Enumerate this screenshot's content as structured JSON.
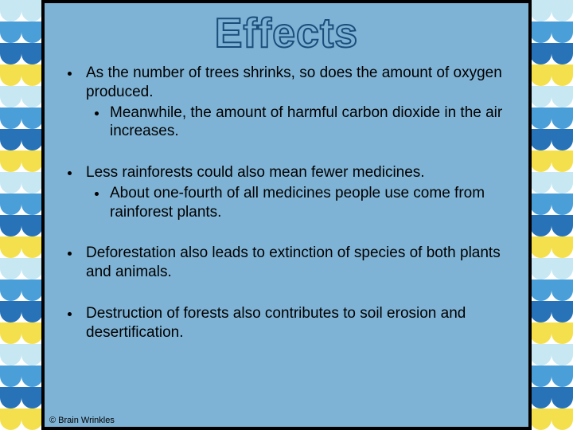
{
  "title": "Effects",
  "bullets": [
    {
      "text": "As the number of trees shrinks, so does the amount of oxygen produced.",
      "sub": [
        "Meanwhile, the amount of harmful carbon dioxide in the air increases."
      ]
    },
    {
      "text": "Less rainforests could also mean fewer medicines.",
      "sub": [
        "About one-fourth of all medicines people use come from rainforest plants."
      ]
    },
    {
      "text": "Deforestation also leads to extinction of species of both plants and animals.",
      "sub": []
    },
    {
      "text": "Destruction of forests also contributes to soil erosion and desertification.",
      "sub": []
    }
  ],
  "copyright": "© Brain Wrinkles",
  "wave_colors": [
    "#c7e8f3",
    "#4a9fd8",
    "#2873b8",
    "#f4e04d"
  ],
  "wave_rows": 20,
  "panel_bg": "#7fb3d5",
  "frame_color": "#000000",
  "title_stroke": "#1a4d7a"
}
